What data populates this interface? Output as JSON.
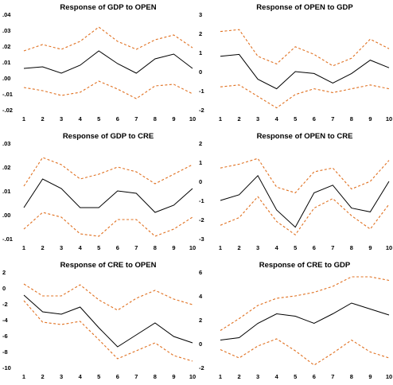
{
  "colors": {
    "response": "#000000",
    "band": "#e07020"
  },
  "chart_data": [
    {
      "type": "line",
      "title": "Response of GDP to OPEN",
      "x": [
        1,
        2,
        3,
        4,
        5,
        6,
        7,
        8,
        9,
        10
      ],
      "ylim": [
        -0.02,
        0.04
      ],
      "yticks": [
        ".04",
        ".03",
        ".02",
        ".01",
        ".00",
        "-.01",
        "-.02"
      ],
      "ytick_values": [
        0.04,
        0.03,
        0.02,
        0.01,
        0.0,
        -0.01,
        -0.02
      ],
      "series": [
        {
          "role": "response",
          "values": [
            0.006,
            0.007,
            0.003,
            0.008,
            0.017,
            0.009,
            0.003,
            0.012,
            0.015,
            0.006
          ]
        },
        {
          "role": "upper",
          "values": [
            0.017,
            0.021,
            0.018,
            0.023,
            0.032,
            0.023,
            0.018,
            0.024,
            0.027,
            0.019
          ]
        },
        {
          "role": "lower",
          "values": [
            -0.006,
            -0.008,
            -0.011,
            -0.009,
            -0.002,
            -0.007,
            -0.013,
            -0.005,
            -0.004,
            -0.01
          ]
        }
      ]
    },
    {
      "type": "line",
      "title": "Response of OPEN to GDP",
      "x": [
        1,
        2,
        3,
        4,
        5,
        6,
        7,
        8,
        9,
        10
      ],
      "ylim": [
        -2,
        3
      ],
      "yticks": [
        "3",
        "2",
        "1",
        "0",
        "-1",
        "-2"
      ],
      "ytick_values": [
        3,
        2,
        1,
        0,
        -1,
        -2
      ],
      "series": [
        {
          "role": "response",
          "values": [
            0.8,
            0.9,
            -0.4,
            -0.9,
            0.0,
            -0.1,
            -0.6,
            -0.1,
            0.6,
            0.2
          ]
        },
        {
          "role": "upper",
          "values": [
            2.1,
            2.2,
            0.8,
            0.4,
            1.3,
            0.9,
            0.3,
            0.7,
            1.7,
            1.2
          ]
        },
        {
          "role": "lower",
          "values": [
            -0.8,
            -0.7,
            -1.3,
            -1.9,
            -1.2,
            -0.9,
            -1.1,
            -0.9,
            -0.7,
            -0.9
          ]
        }
      ]
    },
    {
      "type": "line",
      "title": "Response of GDP to CRE",
      "x": [
        1,
        2,
        3,
        4,
        5,
        6,
        7,
        8,
        9,
        10
      ],
      "ylim": [
        -0.01,
        0.03
      ],
      "yticks": [
        ".03",
        ".02",
        ".01",
        ".00",
        "-.01"
      ],
      "ytick_values": [
        0.03,
        0.02,
        0.01,
        0.0,
        -0.01
      ],
      "series": [
        {
          "role": "response",
          "values": [
            0.003,
            0.015,
            0.011,
            0.003,
            0.003,
            0.01,
            0.009,
            0.001,
            0.004,
            0.011
          ]
        },
        {
          "role": "upper",
          "values": [
            0.012,
            0.024,
            0.021,
            0.015,
            0.017,
            0.02,
            0.018,
            0.013,
            0.017,
            0.021
          ]
        },
        {
          "role": "lower",
          "values": [
            -0.006,
            0.001,
            -0.001,
            -0.008,
            -0.009,
            -0.002,
            -0.002,
            -0.009,
            -0.006,
            -0.001
          ]
        }
      ]
    },
    {
      "type": "line",
      "title": "Response of OPEN to CRE",
      "x": [
        1,
        2,
        3,
        4,
        5,
        6,
        7,
        8,
        9,
        10
      ],
      "ylim": [
        -3,
        2
      ],
      "yticks": [
        "2",
        "1",
        "0",
        "-1",
        "-2",
        "-3"
      ],
      "ytick_values": [
        2,
        1,
        0,
        -1,
        -2,
        -3
      ],
      "series": [
        {
          "role": "response",
          "values": [
            -1.0,
            -0.7,
            0.3,
            -1.5,
            -2.4,
            -0.6,
            -0.2,
            -1.4,
            -1.6,
            0.0
          ]
        },
        {
          "role": "upper",
          "values": [
            0.7,
            0.9,
            1.2,
            -0.3,
            -0.6,
            0.5,
            0.7,
            -0.4,
            0.0,
            1.1
          ]
        },
        {
          "role": "lower",
          "values": [
            -2.3,
            -1.9,
            -0.8,
            -2.1,
            -2.8,
            -1.4,
            -0.9,
            -1.8,
            -2.5,
            -1.2
          ]
        }
      ]
    },
    {
      "type": "line",
      "title": "Response of CRE to OPEN",
      "x": [
        1,
        2,
        3,
        4,
        5,
        6,
        7,
        8,
        9,
        10
      ],
      "ylim": [
        -10,
        2
      ],
      "yticks": [
        "2",
        "0",
        "-2",
        "-4",
        "-6",
        "-8",
        "-10"
      ],
      "ytick_values": [
        2,
        0,
        -2,
        -4,
        -6,
        -8,
        -10
      ],
      "series": [
        {
          "role": "response",
          "values": [
            -0.9,
            -3.0,
            -3.3,
            -2.4,
            -5.0,
            -7.4,
            -5.9,
            -4.4,
            -6.1,
            -6.9
          ]
        },
        {
          "role": "upper",
          "values": [
            0.5,
            -1.0,
            -1.0,
            0.4,
            -1.5,
            -2.8,
            -1.3,
            -0.3,
            -1.4,
            -2.1
          ]
        },
        {
          "role": "lower",
          "values": [
            -1.6,
            -4.3,
            -4.6,
            -4.2,
            -6.5,
            -8.9,
            -7.9,
            -6.9,
            -8.5,
            -9.2
          ]
        }
      ]
    },
    {
      "type": "line",
      "title": "Response of CRE to GDP",
      "x": [
        1,
        2,
        3,
        4,
        5,
        6,
        7,
        8,
        9,
        10
      ],
      "ylim": [
        -2,
        6
      ],
      "yticks": [
        "6",
        "4",
        "2",
        "0",
        "-2"
      ],
      "ytick_values": [
        6,
        4,
        2,
        0,
        -2
      ],
      "series": [
        {
          "role": "response",
          "values": [
            0.3,
            0.5,
            1.7,
            2.5,
            2.3,
            1.7,
            2.5,
            3.4,
            2.9,
            2.4
          ]
        },
        {
          "role": "upper",
          "values": [
            1.1,
            2.1,
            3.2,
            3.8,
            4.0,
            4.3,
            4.8,
            5.6,
            5.6,
            5.3
          ]
        },
        {
          "role": "lower",
          "values": [
            -0.5,
            -1.2,
            -0.2,
            0.4,
            -0.6,
            -1.8,
            -0.8,
            0.3,
            -0.7,
            -1.2
          ]
        }
      ]
    }
  ]
}
